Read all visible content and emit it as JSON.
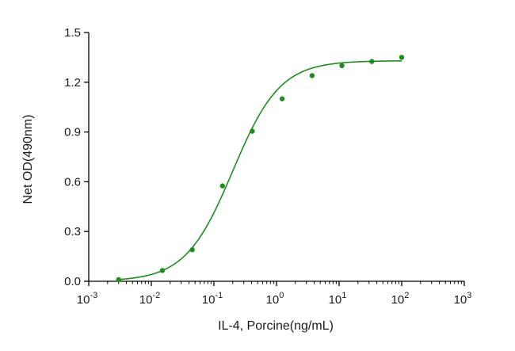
{
  "chart_data": {
    "type": "scatter",
    "title": "",
    "xlabel": "IL-4, Porcine(ng/mL)",
    "ylabel": "Net OD(490nm)",
    "x_scale": "log",
    "xlim": [
      0.001,
      1000
    ],
    "ylim": [
      0,
      1.5
    ],
    "x_ticks": [
      {
        "value": 0.001,
        "base": "10",
        "exp": "-3"
      },
      {
        "value": 0.01,
        "base": "10",
        "exp": "-2"
      },
      {
        "value": 0.1,
        "base": "10",
        "exp": "-1"
      },
      {
        "value": 1,
        "base": "10",
        "exp": "0"
      },
      {
        "value": 10,
        "base": "10",
        "exp": "1"
      },
      {
        "value": 100,
        "base": "10",
        "exp": "2"
      },
      {
        "value": 1000,
        "base": "10",
        "exp": "3"
      }
    ],
    "y_ticks": [
      {
        "value": 0,
        "label": "0.0"
      },
      {
        "value": 0.3,
        "label": "0.3"
      },
      {
        "value": 0.6,
        "label": "0.6"
      },
      {
        "value": 0.9,
        "label": "0.9"
      },
      {
        "value": 1.2,
        "label": "1.2"
      },
      {
        "value": 1.5,
        "label": "1.5"
      }
    ],
    "grid": false,
    "legend": "none",
    "color": "#1f8c1f",
    "points": [
      {
        "x": 0.003,
        "y": 0.01
      },
      {
        "x": 0.015,
        "y": 0.065
      },
      {
        "x": 0.045,
        "y": 0.19
      },
      {
        "x": 0.137,
        "y": 0.575
      },
      {
        "x": 0.41,
        "y": 0.905
      },
      {
        "x": 1.23,
        "y": 1.1
      },
      {
        "x": 3.7,
        "y": 1.24
      },
      {
        "x": 11.1,
        "y": 1.3
      },
      {
        "x": 33.3,
        "y": 1.325
      },
      {
        "x": 100,
        "y": 1.35
      }
    ],
    "fit_curve": {
      "model": "4PL",
      "bottom": 0.0,
      "top": 1.33,
      "ec50": 0.2,
      "hill": 1.15,
      "x_range": [
        0.003,
        100
      ]
    }
  }
}
